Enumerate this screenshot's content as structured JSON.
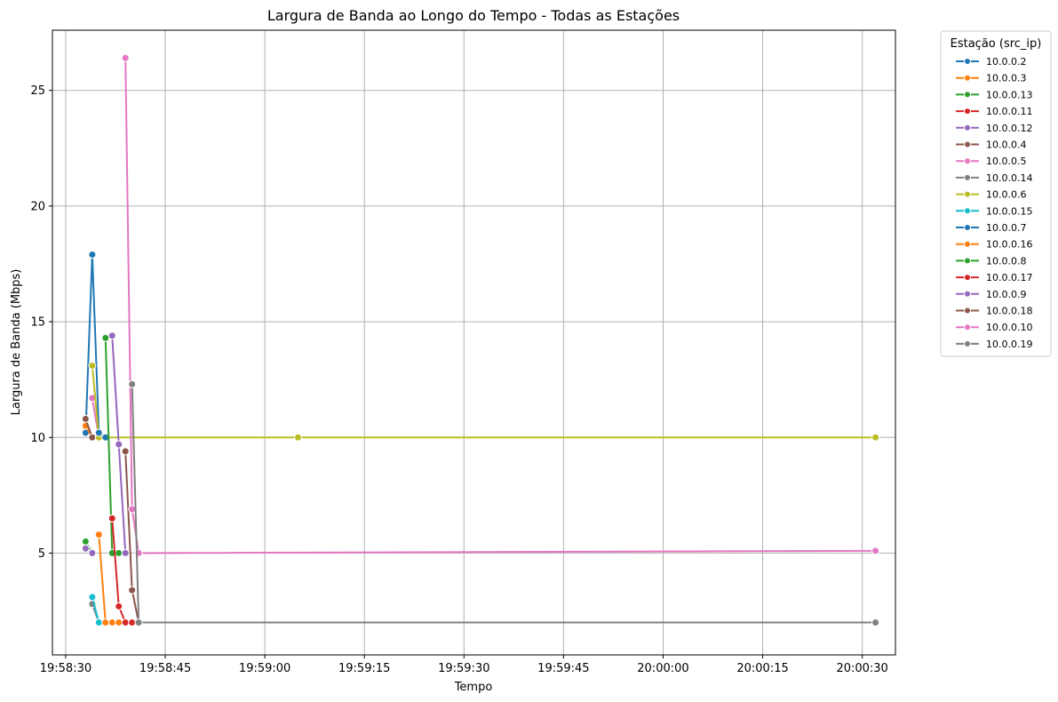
{
  "chart_data": {
    "type": "line",
    "title": "Largura de Banda ao Longo do Tempo - Todas as Estações",
    "xlabel": "Tempo",
    "ylabel": "Largura de Banda (Mbps)",
    "x_unit": "time",
    "xlim": [
      "19:58:28",
      "20:00:35"
    ],
    "ylim": [
      0.6,
      27.6
    ],
    "x_ticks": [
      "19:58:30",
      "19:58:45",
      "19:59:00",
      "19:59:15",
      "19:59:30",
      "19:59:45",
      "20:00:00",
      "20:00:15",
      "20:00:30"
    ],
    "y_ticks": [
      5,
      10,
      15,
      20,
      25
    ],
    "grid": true,
    "legend": {
      "title": "Estação (src_ip)",
      "placement": "outside-right-top"
    },
    "series": [
      {
        "name": "10.0.0.2",
        "color": "#1f77b4",
        "x": [
          "19:58:33",
          "19:58:34",
          "19:58:35",
          "19:58:36"
        ],
        "y": [
          10.2,
          17.9,
          10.2,
          10.0
        ]
      },
      {
        "name": "10.0.0.3",
        "color": "#ff7f0e",
        "x": [
          "19:58:33",
          "19:58:34"
        ],
        "y": [
          10.5,
          10.0
        ]
      },
      {
        "name": "10.0.0.13",
        "color": "#2ca02c",
        "x": [
          "19:58:33",
          "19:58:34"
        ],
        "y": [
          5.5,
          5.0
        ]
      },
      {
        "name": "10.0.0.11",
        "color": "#d62728",
        "x": [
          "19:58:33"
        ],
        "y": [
          5.2
        ]
      },
      {
        "name": "10.0.0.12",
        "color": "#9467bd",
        "x": [
          "19:58:33",
          "19:58:34"
        ],
        "y": [
          5.2,
          5.0
        ]
      },
      {
        "name": "10.0.0.4",
        "color": "#8c564b",
        "x": [
          "19:58:33",
          "19:58:34"
        ],
        "y": [
          10.8,
          10.0
        ]
      },
      {
        "name": "10.0.0.5",
        "color": "#e377c2",
        "x": [
          "19:58:34",
          "19:58:35"
        ],
        "y": [
          11.7,
          10.0
        ]
      },
      {
        "name": "10.0.0.14",
        "color": "#7f7f7f",
        "x": [
          "19:58:34",
          "19:58:35"
        ],
        "y": [
          2.8,
          2.0
        ]
      },
      {
        "name": "10.0.0.6",
        "color": "#bcbd22",
        "x": [
          "19:58:34",
          "19:58:35",
          "19:59:05",
          "20:00:32"
        ],
        "y": [
          13.1,
          10.0,
          10.0,
          10.0
        ]
      },
      {
        "name": "10.0.0.15",
        "color": "#17becf",
        "x": [
          "19:58:34",
          "19:58:35"
        ],
        "y": [
          3.1,
          2.0
        ]
      },
      {
        "name": "10.0.0.7",
        "color": "#1f77b4",
        "x": [
          "19:58:35",
          "19:58:36"
        ],
        "y": [
          10.2,
          10.0
        ]
      },
      {
        "name": "10.0.0.16",
        "color": "#ff7f0e",
        "x": [
          "19:58:35",
          "19:58:36",
          "19:58:37",
          "19:58:38"
        ],
        "y": [
          5.8,
          2.0,
          2.0,
          2.0
        ]
      },
      {
        "name": "10.0.0.8",
        "color": "#2ca02c",
        "x": [
          "19:58:36",
          "19:58:37",
          "19:58:38"
        ],
        "y": [
          14.3,
          5.0,
          5.0
        ]
      },
      {
        "name": "10.0.0.17",
        "color": "#d62728",
        "x": [
          "19:58:37",
          "19:58:38",
          "19:58:39",
          "19:58:40"
        ],
        "y": [
          6.5,
          2.7,
          2.0,
          2.0
        ]
      },
      {
        "name": "10.0.0.9",
        "color": "#9467bd",
        "x": [
          "19:58:37",
          "19:58:38",
          "19:58:39"
        ],
        "y": [
          14.4,
          9.7,
          5.0
        ]
      },
      {
        "name": "10.0.0.18",
        "color": "#8c564b",
        "x": [
          "19:58:39",
          "19:58:40",
          "19:58:41"
        ],
        "y": [
          9.4,
          3.4,
          2.0
        ]
      },
      {
        "name": "10.0.0.10",
        "color": "#e377c2",
        "x": [
          "19:58:39",
          "19:58:40",
          "19:58:41",
          "20:00:32"
        ],
        "y": [
          26.4,
          6.9,
          5.0,
          5.1
        ]
      },
      {
        "name": "10.0.0.19",
        "color": "#7f7f7f",
        "x": [
          "19:58:40",
          "19:58:41",
          "20:00:32"
        ],
        "y": [
          12.3,
          2.0,
          2.0
        ]
      }
    ]
  }
}
